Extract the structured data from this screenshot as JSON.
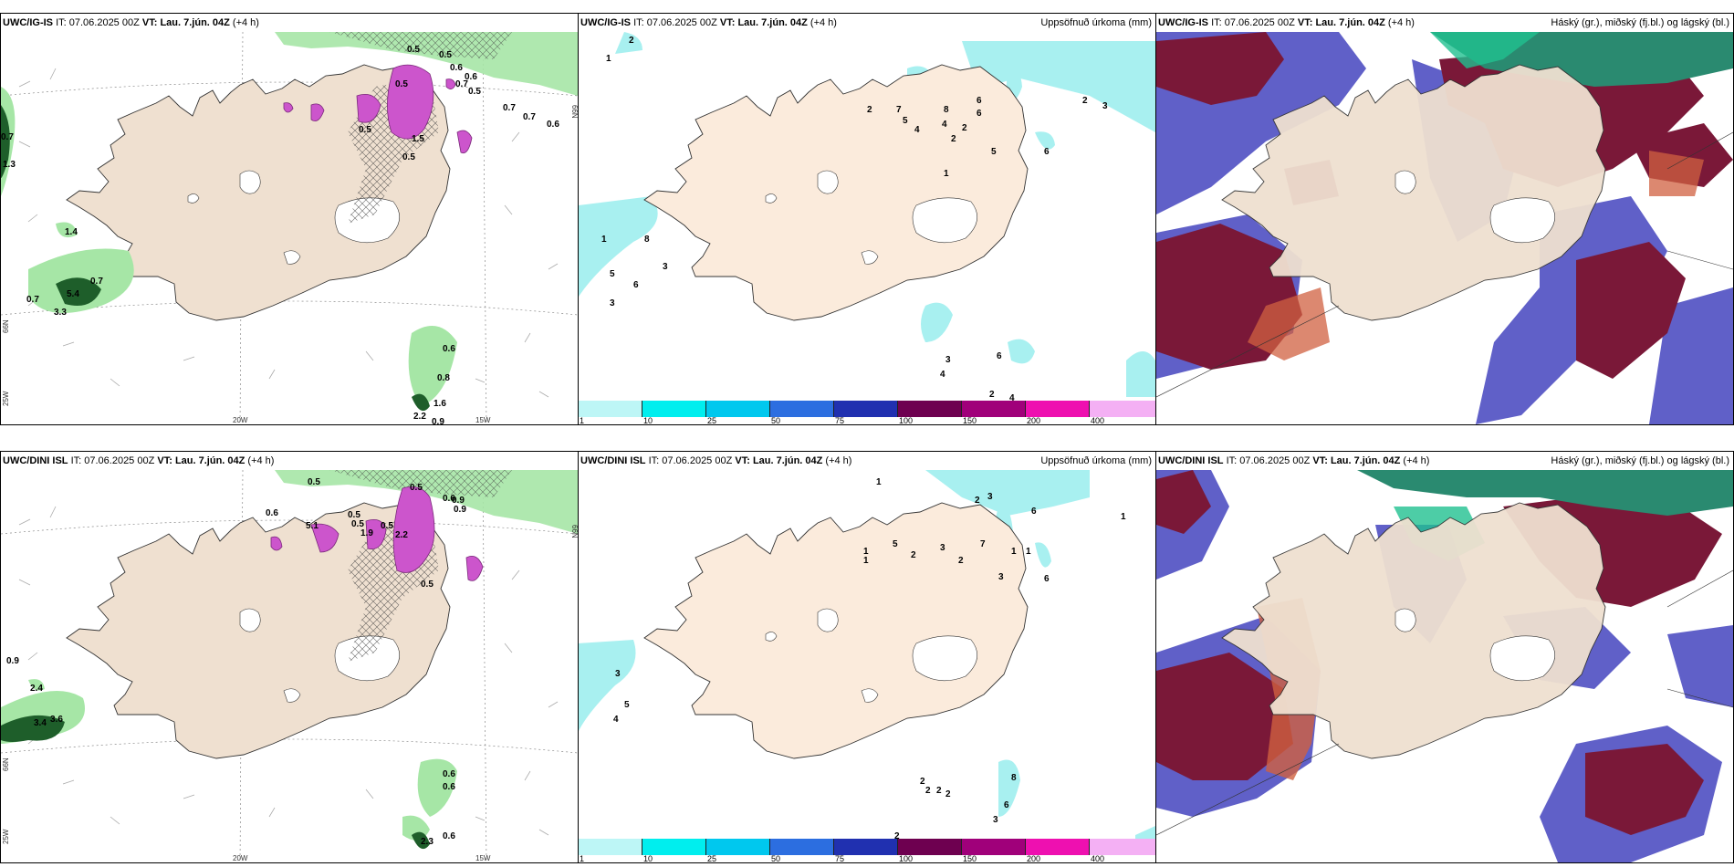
{
  "colors": {
    "land": "#efe0d0",
    "land_plain": "#fbebdc",
    "coast": "#333333",
    "precip_light": "#a6e6a6",
    "precip_dark": "#1e5e2a",
    "convective": "#cc55cc",
    "cloud_high": "#7a1838",
    "cloud_mid": "#6060c8",
    "cloud_low": "#2a8a70",
    "precip_cyan": "#a8f0f0"
  },
  "panels": {
    "p1": {
      "model": "UWC/IG-IS",
      "it_label": "IT:",
      "it_value": "07.06.2025 00Z",
      "vt_label": "VT:",
      "vt_value": "Lau. 7.jún. 04Z",
      "lead": "(+4 h)",
      "right_title": "",
      "axis": {
        "lon1": "20W",
        "lon2": "15W",
        "lat_left": "66N",
        "lat_left2": "25W",
        "lat_right": "66N"
      },
      "values": [
        "0.5",
        "0.5",
        "0.6",
        "0.7",
        "0.6",
        "0.5",
        "0.5",
        "0.7",
        "0.7",
        "0.6",
        "0.7",
        "1.3",
        "1.4",
        "5.4",
        "0.7",
        "0.7",
        "3.3",
        "0.6",
        "0.8",
        "1.6",
        "2.2",
        "0.9",
        "0.5",
        "0.5",
        "1.5"
      ]
    },
    "p2": {
      "model": "UWC/IG-IS",
      "it_label": "IT:",
      "it_value": "07.06.2025 00Z",
      "vt_label": "VT:",
      "vt_value": "Lau. 7.jún. 04Z",
      "lead": "(+4 h)",
      "right_title": "Uppsöfnuð úrkoma (mm)",
      "values": [
        "2",
        "1",
        "6",
        "6",
        "8",
        "7",
        "5",
        "4",
        "2",
        "2",
        "5",
        "6",
        "4",
        "2",
        "3",
        "2",
        "1",
        "1",
        "8",
        "3",
        "5",
        "6",
        "3",
        "3",
        "4",
        "6",
        "2",
        "4"
      ],
      "colorbar": [
        "1",
        "10",
        "25",
        "50",
        "75",
        "100",
        "150",
        "200",
        "400"
      ]
    },
    "p3": {
      "model": "UWC/IG-IS",
      "it_label": "IT:",
      "it_value": "07.06.2025 00Z",
      "vt_label": "VT:",
      "vt_value": "Lau. 7.jún. 04Z",
      "lead": "(+4 h)",
      "right_title": "Háský (gr.), miðský (fj.bl.) og lágský (bl.)"
    },
    "p4": {
      "model": "UWC/DINI ISL",
      "it_label": "IT:",
      "it_value": "07.06.2025 00Z",
      "vt_label": "VT:",
      "vt_value": "Lau. 7.jún. 04Z",
      "lead": "(+4 h)",
      "right_title": "",
      "axis": {
        "lon1": "20W",
        "lon2": "15W",
        "lat_left": "66N",
        "lat_left2": "25W",
        "lat_right": "66N"
      },
      "values": [
        "0.6",
        "0.5",
        "0.5",
        "0.5",
        "0.6",
        "0.9",
        "1.9",
        "0.5",
        "0.5",
        "2.2",
        "0.5",
        "0.9",
        "2.4",
        "3.6",
        "3.4",
        "0.6",
        "0.6",
        "2.3",
        "0.6",
        "5.1",
        "0.9"
      ]
    },
    "p5": {
      "model": "UWC/DINI ISL",
      "it_label": "IT:",
      "it_value": "07.06.2025 00Z",
      "vt_label": "VT:",
      "vt_value": "Lau. 7.jún. 04Z",
      "lead": "(+4 h)",
      "right_title": "Uppsöfnuð úrkoma (mm)",
      "values": [
        "1",
        "2",
        "3",
        "6",
        "5",
        "2",
        "3",
        "2",
        "7",
        "1",
        "1",
        "3",
        "6",
        "1",
        "1",
        "1",
        "3",
        "5",
        "4",
        "8",
        "6",
        "3",
        "2",
        "2",
        "2",
        "2",
        "2"
      ],
      "colorbar": [
        "1",
        "10",
        "25",
        "50",
        "75",
        "100",
        "150",
        "200",
        "400"
      ]
    },
    "p6": {
      "model": "UWC/DINI ISL",
      "it_label": "IT:",
      "it_value": "07.06.2025 00Z",
      "vt_label": "VT:",
      "vt_value": "Lau. 7.jún. 04Z",
      "lead": "(+4 h)",
      "right_title": "Háský (gr.), miðský (fj.bl.) og lágský (bl.)"
    }
  }
}
